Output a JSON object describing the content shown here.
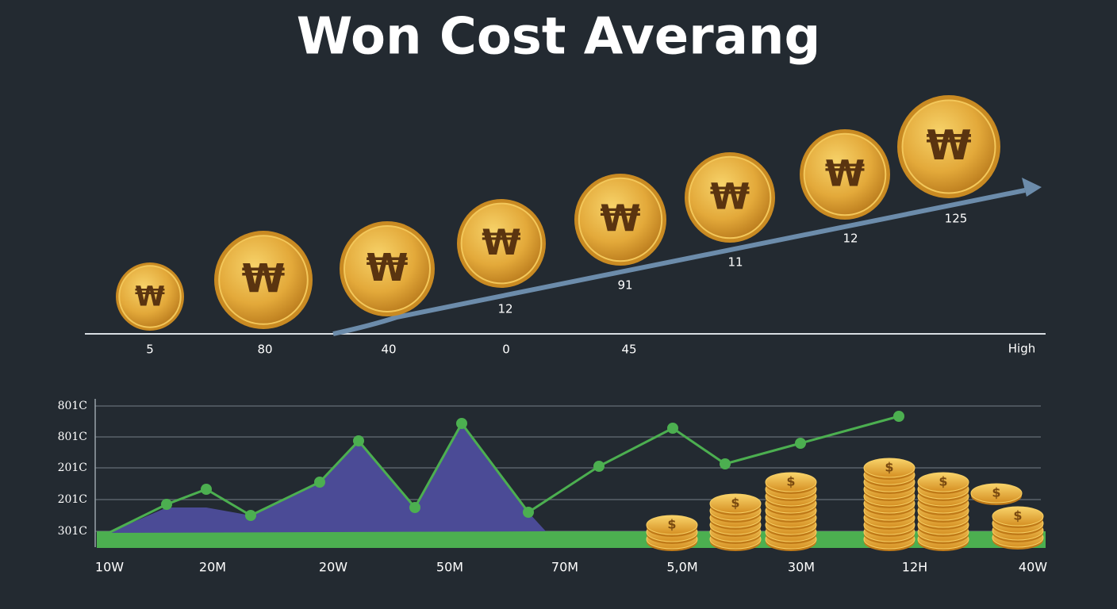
{
  "title": "Won Cost Averang",
  "coin_symbol": "₩",
  "stack_symbol": "$",
  "top_chart": {
    "coin_labels": [
      "12",
      "91",
      "11",
      "12",
      "125"
    ],
    "axis_labels": [
      "5",
      "80",
      "40",
      "0",
      "45"
    ],
    "axis_end_label": "High"
  },
  "bottom_chart": {
    "y_labels": [
      "801C",
      "801C",
      "201C",
      "201C",
      "301C"
    ],
    "x_labels": [
      "10W",
      "20M",
      "20W",
      "50M",
      "70M",
      "5,0M",
      "30M",
      "12H",
      "40W"
    ]
  }
}
